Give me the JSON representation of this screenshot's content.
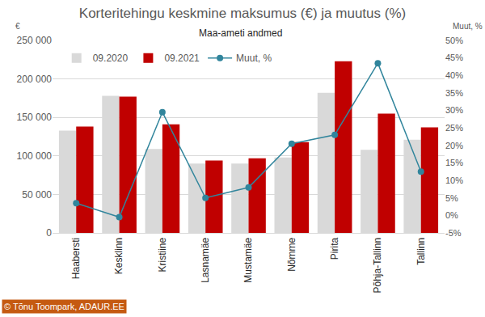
{
  "chart_data": {
    "type": "bar",
    "title": "Korteritehingu keskmine maksumus (€) ja muutus (%)",
    "subtitle": "Maa-ameti andmed",
    "y_label": "€",
    "y2_label": "Muut, %",
    "annotations": [
      "© Tõnu Toompark, ADAUR.EE"
    ],
    "categories": [
      "Haabersti",
      "Kesklinn",
      "Kristiine",
      "Lasnamäe",
      "Mustamäe",
      "Nõmme",
      "Pirita",
      "Põhja-Tallinn",
      "Tallinn"
    ],
    "series": [
      {
        "name": "09.2020",
        "type": "bar",
        "color": "#d9d9d9",
        "values": [
          133000,
          178000,
          109000,
          90000,
          90000,
          98000,
          182000,
          108000,
          121000
        ]
      },
      {
        "name": "09.2021",
        "type": "bar",
        "color": "#c00000",
        "values": [
          138000,
          177000,
          141000,
          94000,
          97000,
          118000,
          223000,
          155000,
          137000
        ]
      },
      {
        "name": "Muut, %",
        "type": "line",
        "color": "#31859c",
        "marker": "circle",
        "axis": "y2",
        "values": [
          3.5,
          -0.5,
          29.5,
          5,
          8,
          20.5,
          23,
          43.5,
          12.5
        ]
      }
    ],
    "ylim": [
      0,
      250000
    ],
    "yticks": [
      0,
      {
        "value": 50000,
        "label": "50 000"
      },
      {
        "value": 100000,
        "label": "100 000"
      },
      {
        "value": 150000,
        "label": "150 000"
      },
      {
        "value": 200000,
        "label": "200 000"
      },
      {
        "value": 250000,
        "label": "250 000"
      }
    ],
    "y2lim": [
      -5,
      50
    ],
    "y2ticks": [
      {
        "value": -5,
        "label": "-5%"
      },
      {
        "value": 0,
        "label": "0%"
      },
      {
        "value": 5,
        "label": "5%"
      },
      {
        "value": 10,
        "label": "10%"
      },
      {
        "value": 15,
        "label": "15%"
      },
      {
        "value": 20,
        "label": "20%"
      },
      {
        "value": 25,
        "label": "25%"
      },
      {
        "value": 30,
        "label": "30%"
      },
      {
        "value": 35,
        "label": "35%"
      },
      {
        "value": 40,
        "label": "40%"
      },
      {
        "value": 45,
        "label": "45%"
      },
      {
        "value": 50,
        "label": "50%"
      }
    ],
    "grid": true,
    "legend": "upper left"
  }
}
